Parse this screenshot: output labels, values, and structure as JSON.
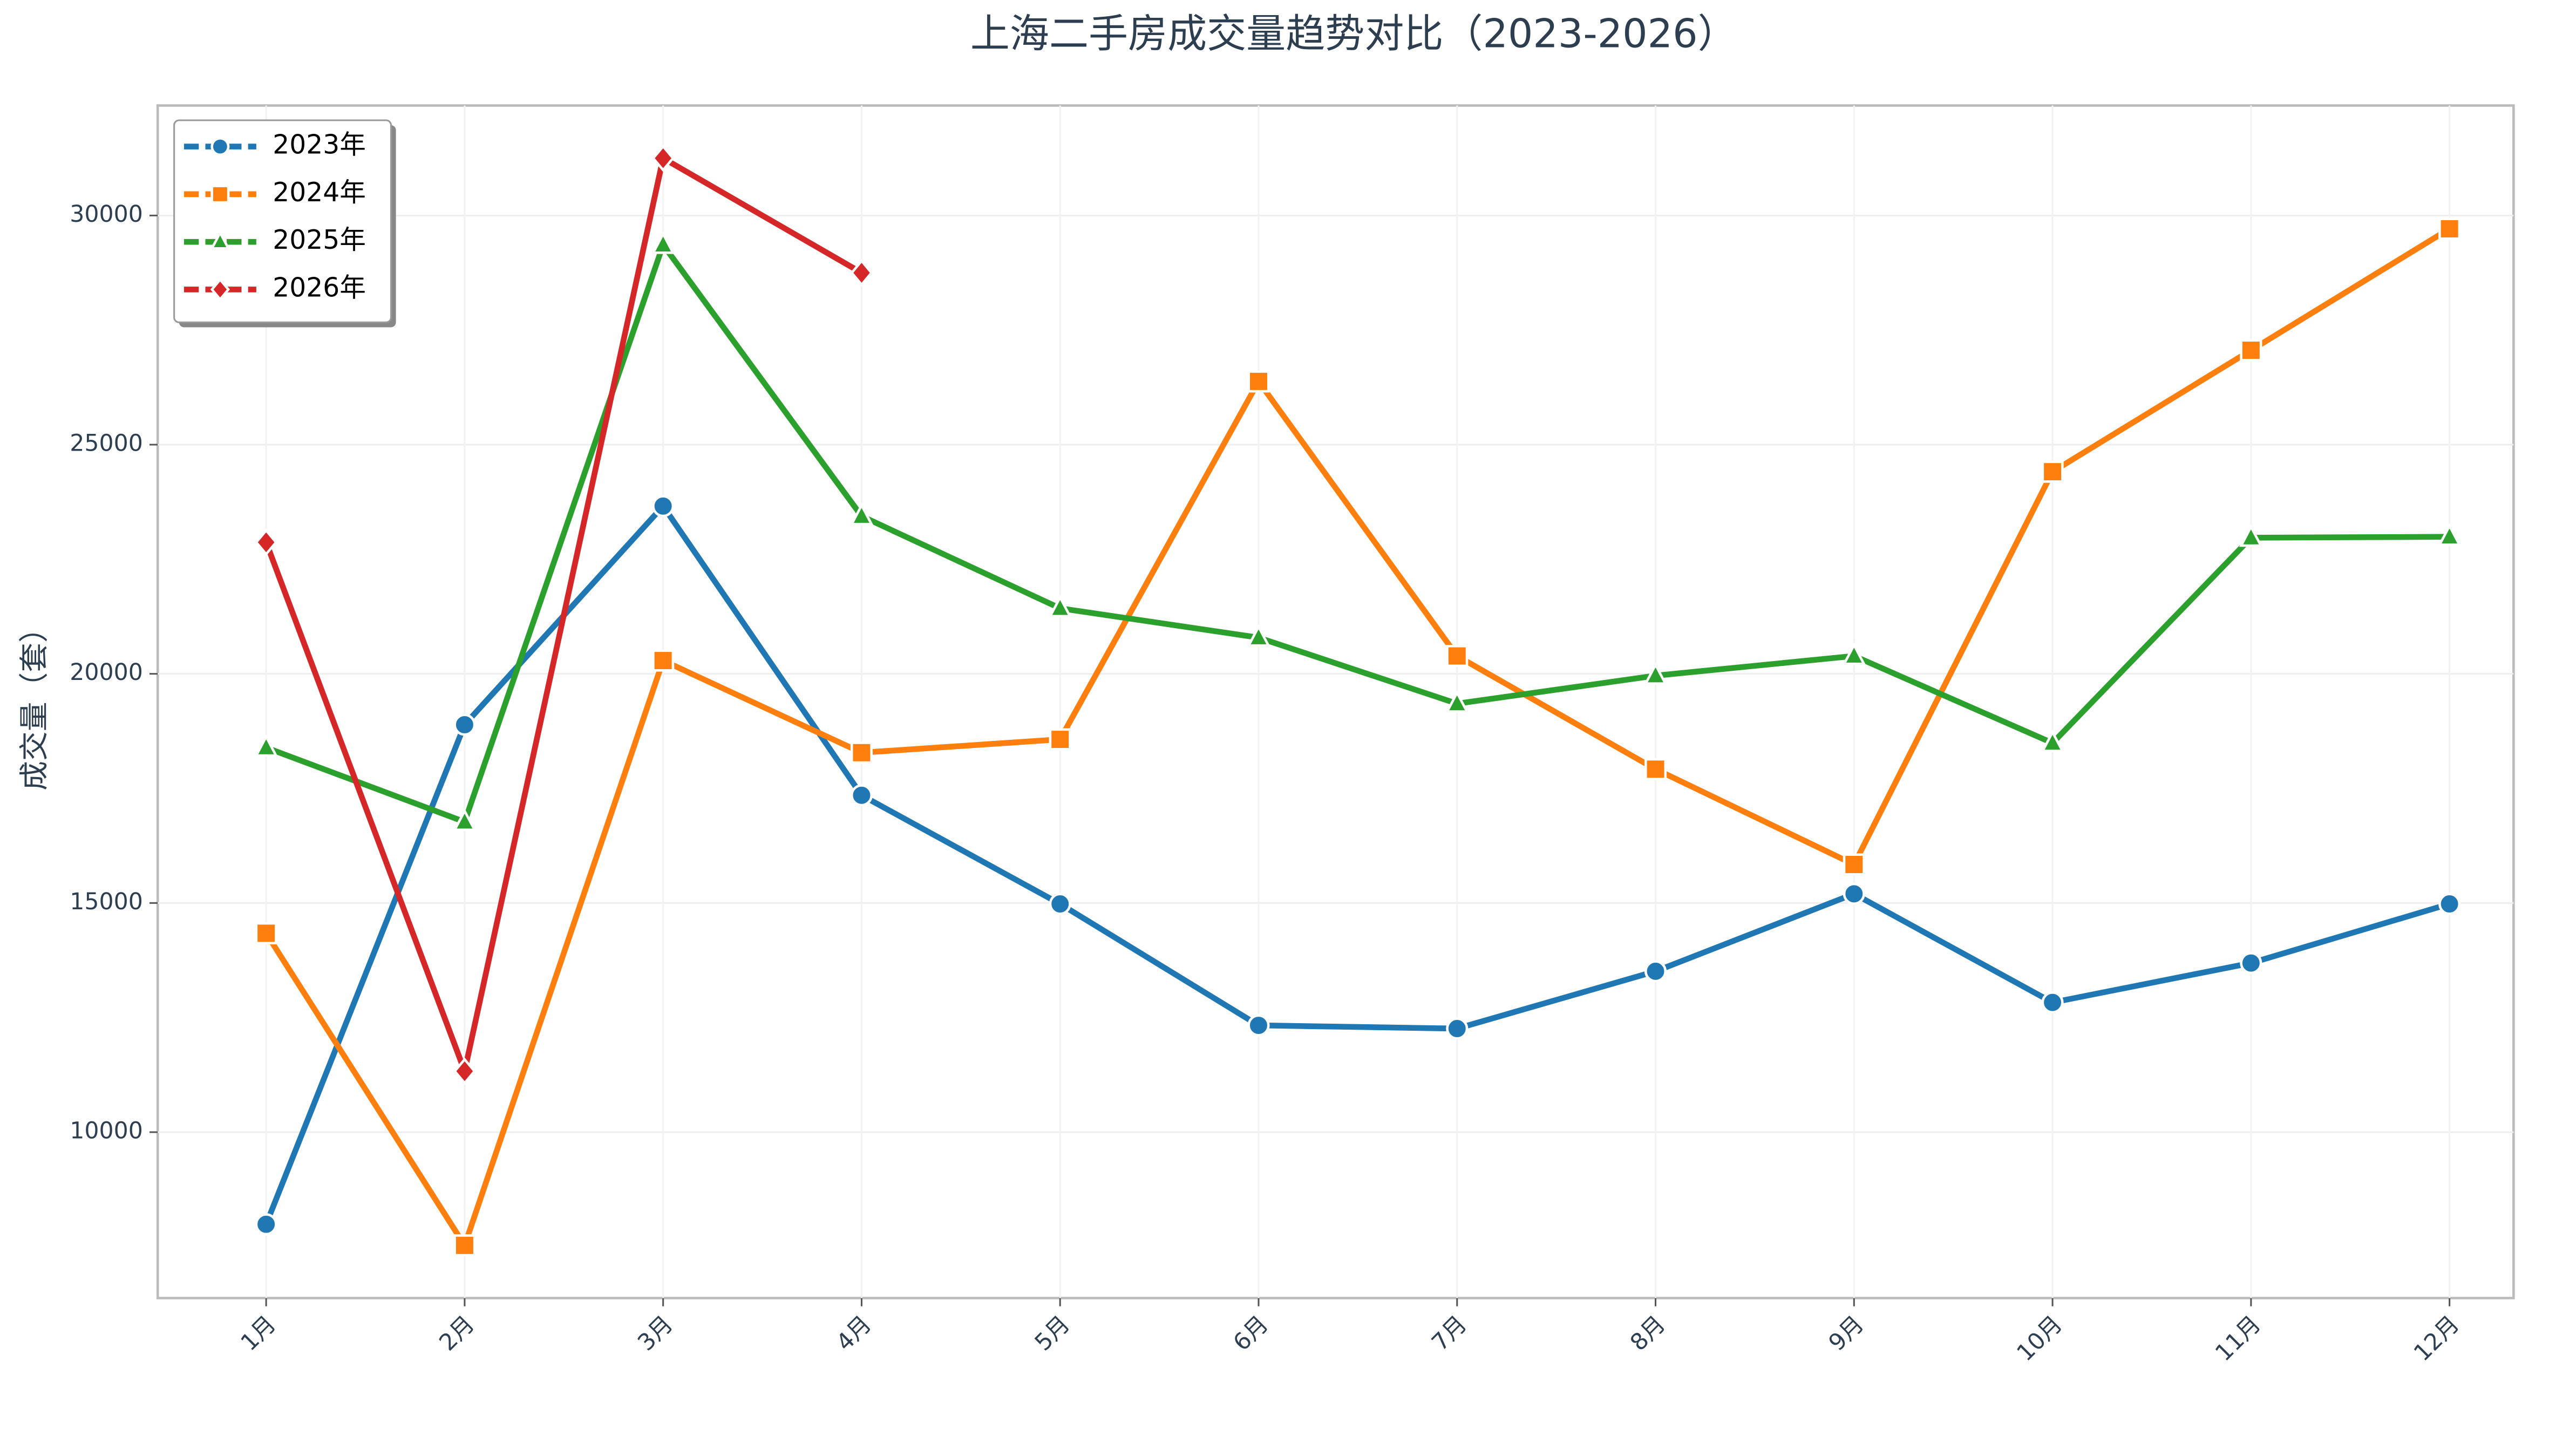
{
  "chart_data": {
    "type": "line",
    "title": "上海二手房成交量趋势对比（2023-2026）",
    "y_label": "成交量（套）",
    "categories": [
      "1月",
      "2月",
      "3月",
      "4月",
      "5月",
      "6月",
      "7月",
      "8月",
      "9月",
      "10月",
      "11月",
      "12月"
    ],
    "series": [
      {
        "name": "2023年",
        "color": "#1f77b4",
        "marker": "circle",
        "values": [
          7990,
          18890,
          23660,
          17350,
          14980,
          12330,
          12260,
          13510,
          15200,
          12830,
          13690,
          14980
        ]
      },
      {
        "name": "2024年",
        "color": "#ff7f0e",
        "marker": "square",
        "values": [
          14340,
          7530,
          20290,
          18280,
          18570,
          26380,
          20390,
          17920,
          15840,
          24410,
          27060,
          29710
        ]
      },
      {
        "name": "2025年",
        "color": "#2ca02c",
        "marker": "triangle",
        "values": [
          18390,
          16770,
          29360,
          23440,
          21430,
          20790,
          19350,
          19960,
          20390,
          18490,
          22970,
          22990
        ]
      },
      {
        "name": "2026年",
        "color": "#d62728",
        "marker": "diamond",
        "values": [
          22870,
          11330,
          31250,
          28750,
          null,
          null,
          null,
          null,
          null,
          null,
          null,
          null
        ]
      }
    ],
    "ylim": [
      6380,
      32400
    ],
    "yticks": [
      10000,
      15000,
      20000,
      25000,
      30000
    ],
    "grid": true,
    "legend": "upper-left"
  }
}
